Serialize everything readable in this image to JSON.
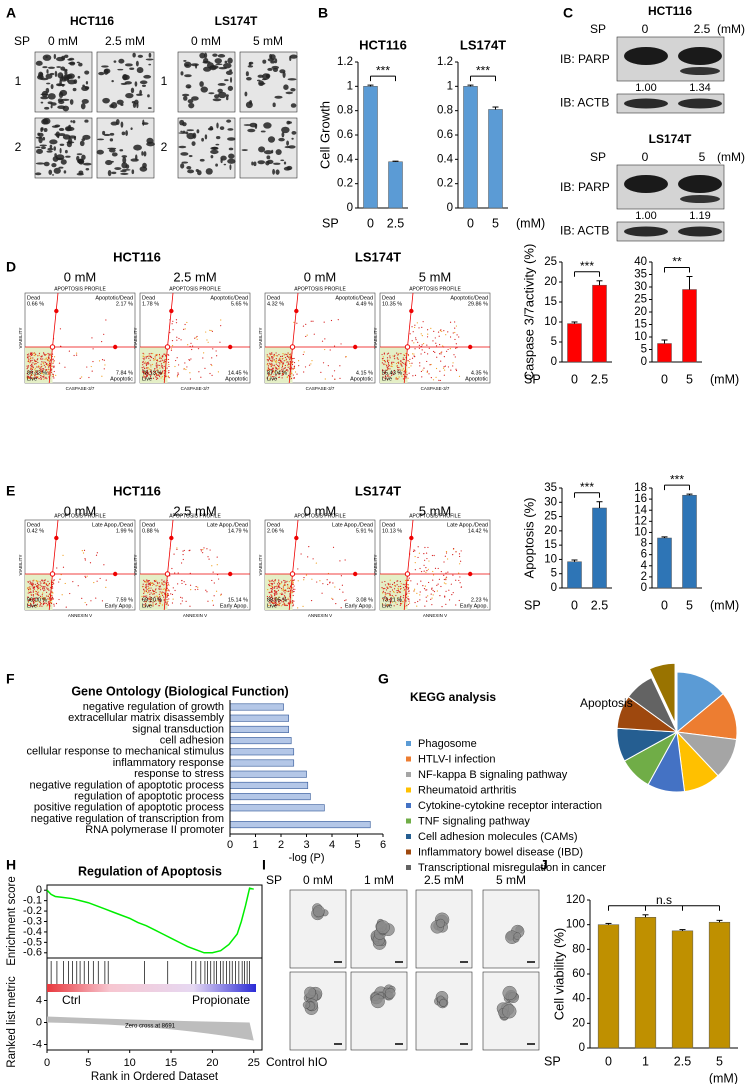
{
  "panel_labels": [
    "A",
    "B",
    "C",
    "D",
    "E",
    "F",
    "G",
    "H",
    "I",
    "J"
  ],
  "panel_a": {
    "cell_lines": [
      "HCT116",
      "LS174T"
    ],
    "treatment": "SP",
    "conditions": [
      "0 mM",
      "2.5 mM",
      "0 mM",
      "5 mM"
    ],
    "rows": [
      "1",
      "2"
    ]
  },
  "panel_c": {
    "blots": [
      {
        "cell_line": "HCT116",
        "treatment": "SP",
        "doses": [
          "0",
          "2.5"
        ],
        "unit": "(mM)",
        "targets": [
          "IB: PARP",
          "IB: ACTB"
        ],
        "ratios": [
          "1.00",
          "1.34"
        ]
      },
      {
        "cell_line": "LS174T",
        "treatment": "SP",
        "doses": [
          "0",
          "5"
        ],
        "unit": "(mM)",
        "targets": [
          "IB: PARP",
          "IB: ACTB"
        ],
        "ratios": [
          "1.00",
          "1.19"
        ]
      }
    ]
  },
  "flow_panels": [
    {
      "cell_lines": [
        "HCT116",
        "LS174T"
      ],
      "conditions": [
        "0 mM",
        "2.5 mM",
        "0 mM",
        "5 mM"
      ],
      "profile": "APOPTOSIS PROFILE",
      "y_axis": "VIABILITY",
      "x_axis": "CASPASE-3/7",
      "quadrants": [
        "Dead",
        "Apoptotic/Dead",
        "Live",
        "Apoptotic"
      ],
      "plots": [
        [
          "0.66 %",
          "2.17 %",
          "89.33 %",
          "7.84 %"
        ],
        [
          "1.78 %",
          "5.65 %",
          "78.13 %",
          "14.45 %"
        ],
        [
          "4.32 %",
          "4.49 %",
          "87.04 %",
          "4.15 %"
        ],
        [
          "10.35 %",
          "29.86 %",
          "55.43 %",
          "4.35 %"
        ]
      ]
    },
    {
      "cell_lines": [
        "HCT116",
        "LS174T"
      ],
      "conditions": [
        "0 mM",
        "2.5 mM",
        "0 mM",
        "5 mM"
      ],
      "profile": "APOPTOSIS PROFILE",
      "y_axis": "VIABILITY",
      "x_axis": "ANNEXIN V",
      "quadrants": [
        "Dead",
        "Late Apop./Dead",
        "Live",
        "Early Apop."
      ],
      "plots": [
        [
          "0.42 %",
          "1.99 %",
          "90.00 %",
          "7.59 %"
        ],
        [
          "0.88 %",
          "14.79 %",
          "69.20 %",
          "15.14 %"
        ],
        [
          "2.06 %",
          "5.91 %",
          "88.95 %",
          "3.08 %"
        ],
        [
          "10.13 %",
          "14.42 %",
          "73.21 %",
          "2.23 %"
        ]
      ]
    }
  ],
  "panel_i": {
    "treatment": "SP",
    "conditions": [
      "0 mM",
      "1 mM",
      "2.5 mM",
      "5 mM"
    ],
    "caption": "Control hIO"
  },
  "chart_data": [
    {
      "type": "bar",
      "title": "HCT116",
      "y_label": "Cell Growth",
      "x_label": "SP",
      "categories": [
        "0",
        "2.5"
      ],
      "values": [
        1.0,
        0.38
      ],
      "errors": [
        0.01,
        0.005
      ],
      "color": "#5b9bd5",
      "ylim": [
        0,
        1.2
      ],
      "yticks": [
        0,
        0.2,
        0.4,
        0.6,
        0.8,
        1,
        1.2
      ],
      "significance": "***"
    },
    {
      "type": "bar",
      "title": "LS174T",
      "unit": "(mM)",
      "categories": [
        "0",
        "5"
      ],
      "values": [
        1.0,
        0.81
      ],
      "errors": [
        0.01,
        0.02
      ],
      "color": "#5b9bd5",
      "ylim": [
        0,
        1.2
      ],
      "yticks": [
        0,
        0.2,
        0.4,
        0.6,
        0.8,
        1,
        1.2
      ],
      "significance": "***"
    },
    {
      "type": "bar",
      "y_label": "Caspase 3/7activity (%)",
      "x_label": "SP",
      "categories": [
        "0",
        "2.5"
      ],
      "values": [
        9.6,
        19.2
      ],
      "errors": [
        0.4,
        1.1
      ],
      "color": "#ff0000",
      "ylim": [
        0,
        25
      ],
      "yticks": [
        0,
        5,
        10,
        15,
        20,
        25
      ],
      "significance": "***"
    },
    {
      "type": "bar",
      "unit": "(mM)",
      "categories": [
        "0",
        "5"
      ],
      "values": [
        7.4,
        29
      ],
      "errors": [
        1.4,
        5.2
      ],
      "color": "#ff0000",
      "ylim": [
        0,
        40
      ],
      "yticks": [
        0,
        5,
        10,
        15,
        20,
        25,
        30,
        35,
        40
      ],
      "significance": "**"
    },
    {
      "type": "bar",
      "y_label": "Apoptosis (%)",
      "x_label": "SP",
      "categories": [
        "0",
        "2.5"
      ],
      "values": [
        9.2,
        28
      ],
      "errors": [
        0.6,
        2.2
      ],
      "color": "#2e75b6",
      "ylim": [
        0,
        35
      ],
      "yticks": [
        0,
        5,
        10,
        15,
        20,
        25,
        30,
        35
      ],
      "significance": "***"
    },
    {
      "type": "bar",
      "unit": "(mM)",
      "categories": [
        "0",
        "5"
      ],
      "values": [
        9,
        16.7
      ],
      "errors": [
        0.2,
        0.2
      ],
      "color": "#2e75b6",
      "ylim": [
        0,
        18
      ],
      "yticks": [
        0,
        2,
        4,
        6,
        8,
        10,
        12,
        14,
        16,
        18
      ],
      "significance": "***"
    },
    {
      "type": "hbar",
      "title": "Gene Ontology (Biological Function)",
      "x_label": "-log (P)",
      "categories": [
        "negative regulation of growth",
        "extracellular matrix disassembly",
        "signal transduction",
        "cell adhesion",
        "cellular response to mechanical stimulus",
        "inflammatory response",
        "response to stress",
        "negative regulation of apoptotic process",
        "regulation of apoptotic process",
        "positive regulation of apoptotic process",
        [
          "negative regulation of transcription from",
          "RNA polymerase II promoter"
        ]
      ],
      "values": [
        2.1,
        2.3,
        2.3,
        2.4,
        2.5,
        2.5,
        3.0,
        3.05,
        3.15,
        3.7,
        5.5
      ],
      "label_colors": [
        "#c00000",
        "#000000",
        "#000000",
        "#c00000",
        "#000000",
        "#c00000",
        "#000000",
        "#c00000",
        "#c00000",
        "#c00000",
        "#000000"
      ],
      "color": "#b4c7e7",
      "edge": "#2f5597",
      "xlim": [
        0,
        6
      ],
      "xticks": [
        0,
        1,
        2,
        3,
        4,
        5,
        6
      ]
    },
    {
      "type": "pie",
      "title": "KEGG analysis",
      "categories": [
        "Phagosome",
        "HTLV-I infection",
        "NF-kappa B signaling pathway",
        "Rheumatoid arthritis",
        "Cytokine-cytokine receptor interaction",
        "TNF signaling pathway",
        "Cell adhesion molecules (CAMs)",
        "Inflammatory bowel disease (IBD)",
        "Transcriptional misregulation in cancer",
        "Apoptosis"
      ],
      "values": [
        14,
        13,
        11,
        10,
        10,
        9,
        9,
        9,
        8,
        7
      ],
      "colors": [
        "#5b9bd5",
        "#ed7d31",
        "#a5a5a5",
        "#ffc000",
        "#4472c4",
        "#70ad47",
        "#255e91",
        "#9e480e",
        "#636363",
        "#997300"
      ]
    },
    {
      "type": "line",
      "title": "Regulation of Apoptosis",
      "y_label": "Enrichment score",
      "metric_label": "Ranked list metric",
      "x_label": "Rank in Ordered Dataset",
      "x": [
        0,
        0.5,
        1,
        2,
        3,
        4,
        5,
        6,
        7,
        8,
        9,
        10,
        11,
        12,
        13,
        14,
        15,
        16,
        17,
        18,
        19,
        20,
        21,
        22,
        23,
        23.5,
        24,
        24.5,
        25
      ],
      "values": [
        0,
        -0.04,
        -0.06,
        -0.07,
        -0.08,
        -0.1,
        -0.12,
        -0.15,
        -0.18,
        -0.21,
        -0.24,
        -0.27,
        -0.31,
        -0.34,
        -0.38,
        -0.42,
        -0.46,
        -0.5,
        -0.54,
        -0.57,
        -0.6,
        -0.6,
        -0.58,
        -0.52,
        -0.42,
        -0.3,
        -0.15,
        0.02,
        0.01
      ],
      "color": "#00ee00",
      "xlim": [
        0,
        26
      ],
      "xticks": [
        0,
        5,
        10,
        15,
        20,
        25
      ],
      "ylim": [
        -0.65,
        0.05
      ],
      "yticks": [
        0,
        -0.1,
        -0.2,
        -0.3,
        -0.4,
        -0.5,
        -0.6
      ],
      "hits": [
        0.5,
        1.2,
        2.0,
        2.6,
        3.1,
        3.6,
        4.0,
        4.5,
        5.0,
        5.6,
        6.2,
        7.0,
        7.4,
        11.8,
        14.6,
        17.5,
        18.0,
        18.6,
        19.1,
        19.4,
        19.8,
        20.2,
        20.5,
        21.0,
        21.3,
        21.7,
        22.1,
        22.4,
        22.8,
        23.2,
        23.6,
        23.9,
        24.2,
        24.5
      ],
      "metric_ylim": [
        -5,
        5
      ],
      "metric_yticks": [
        4,
        0,
        -4
      ],
      "phenotypes": [
        "Ctrl",
        "Propionate"
      ],
      "zero_cross": "Zero cross at 8691"
    },
    {
      "type": "bar",
      "y_label": "Cell viability (%)",
      "x_label": "SP",
      "unit": "(mM)",
      "categories": [
        "0",
        "1",
        "2.5",
        "5"
      ],
      "values": [
        100,
        106,
        95,
        102
      ],
      "errors": [
        1,
        2,
        1,
        1.5
      ],
      "color": "#bf9000",
      "ylim": [
        0,
        120
      ],
      "yticks": [
        0,
        20,
        40,
        60,
        80,
        100,
        120
      ],
      "significance": "n.s"
    }
  ]
}
